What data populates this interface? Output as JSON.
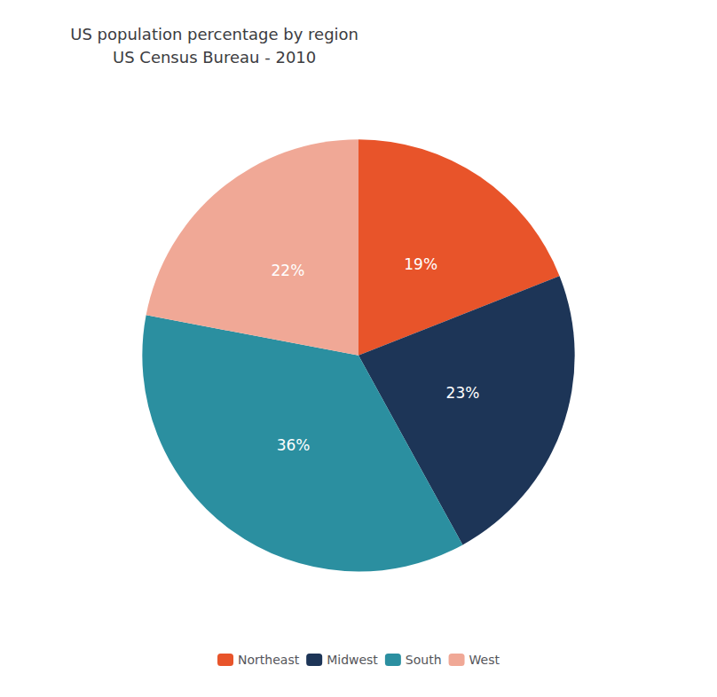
{
  "chart_data": {
    "type": "pie",
    "title": "US population percentage by region\nUS Census Bureau - 2010",
    "categories": [
      "Northeast",
      "Midwest",
      "South",
      "West"
    ],
    "values": [
      19,
      23,
      36,
      22
    ],
    "value_labels": [
      "19%",
      "23%",
      "36%",
      "22%"
    ],
    "colors": [
      "#E8542A",
      "#1D3557",
      "#2B8FA0",
      "#F0A896"
    ],
    "data_labels": true,
    "legend": "bottom"
  }
}
